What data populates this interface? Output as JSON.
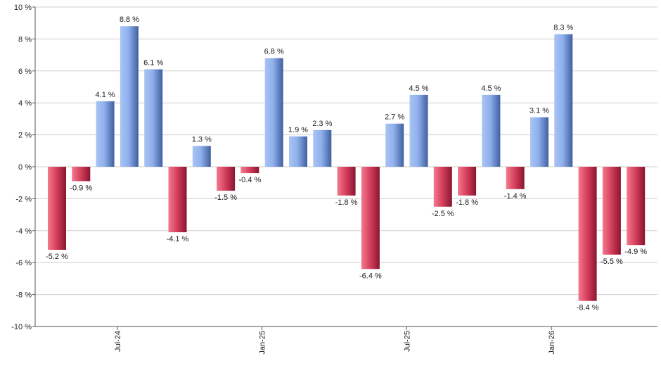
{
  "chart_data": {
    "type": "bar",
    "title": "",
    "xlabel": "",
    "ylabel": "",
    "ylim": [
      -10,
      10
    ],
    "y_ticks": [
      10,
      8,
      6,
      4,
      2,
      0,
      -2,
      -4,
      -6,
      -8,
      -10
    ],
    "y_tick_labels": [
      "10 %",
      "8 %",
      "6 %",
      "4 %",
      "2 %",
      "0 %",
      "-2 %",
      "-4 %",
      "-6 %",
      "-8 %",
      "-10 %"
    ],
    "grid": true,
    "legend": "none",
    "x_tick_labels": [
      {
        "label": "Jul-24",
        "index": 2.5
      },
      {
        "label": "Jan-25",
        "index": 8.5
      },
      {
        "label": "Jul-25",
        "index": 14.5
      },
      {
        "label": "Jan-26",
        "index": 20.5
      }
    ],
    "values": [
      -5.2,
      -0.9,
      4.1,
      8.8,
      6.1,
      -4.1,
      1.3,
      -1.5,
      -0.4,
      6.8,
      1.9,
      2.3,
      -1.8,
      -6.4,
      2.7,
      4.5,
      -2.5,
      -1.8,
      4.5,
      -1.4,
      3.1,
      8.3,
      -8.4,
      -5.5,
      -4.9
    ],
    "labels": [
      "-5.2 %",
      "-0.9 %",
      "4.1 %",
      "8.8 %",
      "6.1 %",
      "-4.1 %",
      "1.3 %",
      "-1.5 %",
      "-0.4 %",
      "6.8 %",
      "1.9 %",
      "2.3 %",
      "-1.8 %",
      "-6.4 %",
      "2.7 %",
      "4.5 %",
      "-2.5 %",
      "-1.8 %",
      "4.5 %",
      "-1.4 %",
      "3.1 %",
      "8.3 %",
      "-8.4 %",
      "-5.5 %",
      "-4.9 %"
    ],
    "colors": {
      "positive_light": "#a9c4f5",
      "positive_dark": "#3f5f9f",
      "negative_light": "#f27a8e",
      "negative_dark": "#8a1530",
      "grid": "#cfcfcf"
    }
  }
}
